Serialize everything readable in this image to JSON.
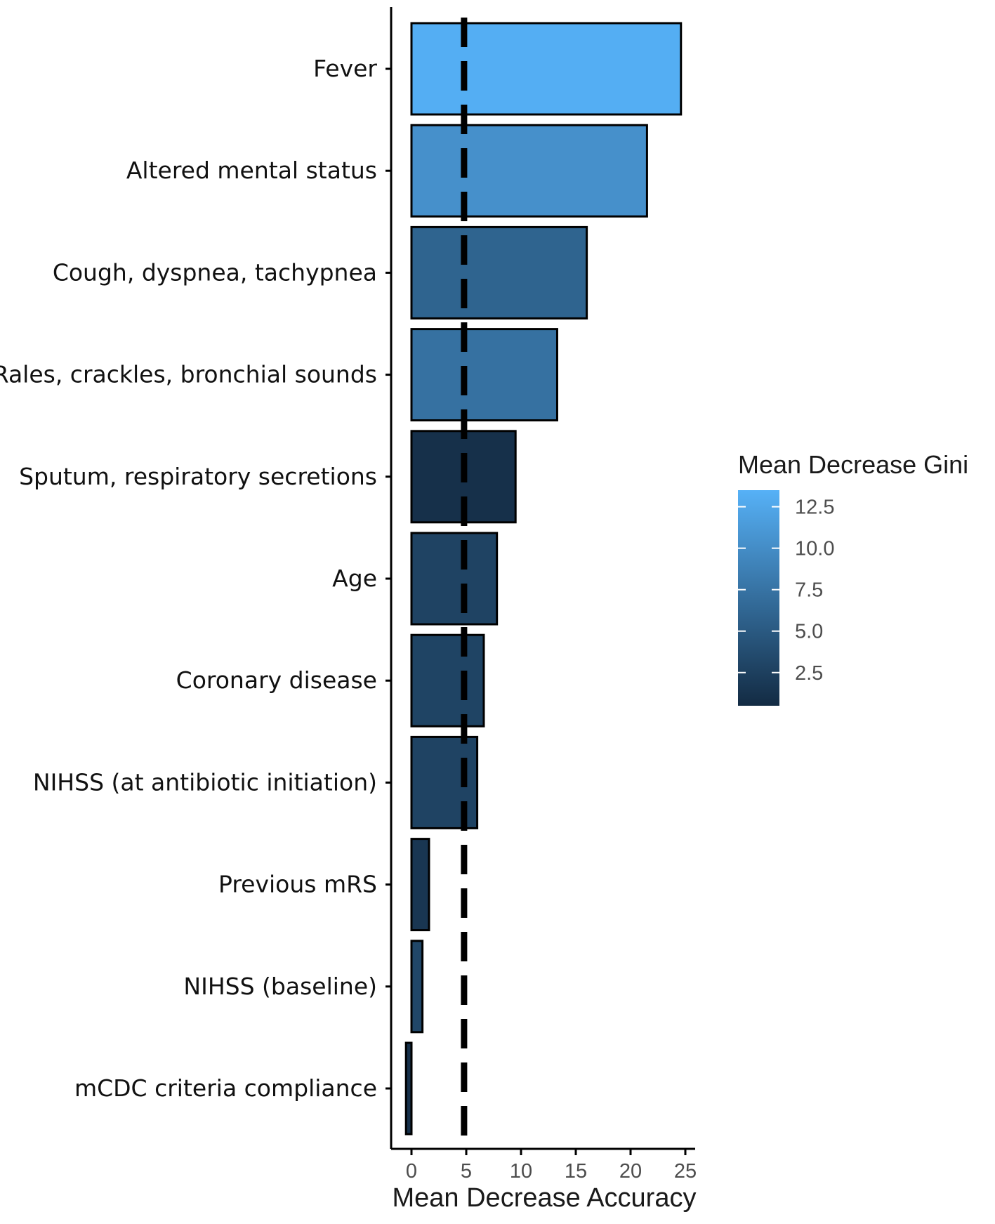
{
  "chart_data": {
    "type": "bar",
    "orientation": "horizontal",
    "title": "",
    "xlabel": "Mean Decrease Accuracy",
    "ylabel": "",
    "xlim": [
      -1,
      26
    ],
    "x_ticks": [
      0,
      5,
      10,
      15,
      20,
      25
    ],
    "reference_line": {
      "value": 4.8,
      "style": "dashed"
    },
    "categories": [
      "Fever",
      "Altered mental status",
      "Cough, dyspnea, tachypnea",
      "Rales, crackles, bronchial sounds",
      "Sputum, respiratory secretions",
      "Age",
      "Coronary disease",
      "NIHSS (at antibiotic initiation)",
      "Previous mRS",
      "NIHSS (baseline)",
      "mCDC criteria compliance"
    ],
    "values": [
      24.6,
      21.5,
      16.0,
      13.3,
      9.5,
      7.8,
      6.6,
      6.0,
      1.6,
      1.0,
      -0.5
    ],
    "fill_values": [
      13.2,
      10.3,
      6.0,
      7.3,
      1.0,
      2.8,
      2.9,
      2.8,
      1.6,
      3.2,
      1.0
    ],
    "legend": {
      "title": "Mean Decrease Gini",
      "ticks": [
        12.5,
        10.0,
        7.5,
        5.0,
        2.5
      ],
      "tick_labels": [
        "12.5",
        "10.0",
        "7.5",
        "5.0",
        "2.5"
      ],
      "range": [
        0.5,
        13.5
      ],
      "low_color": "#132b43",
      "high_color": "#56b1f7",
      "placement": "right"
    }
  }
}
